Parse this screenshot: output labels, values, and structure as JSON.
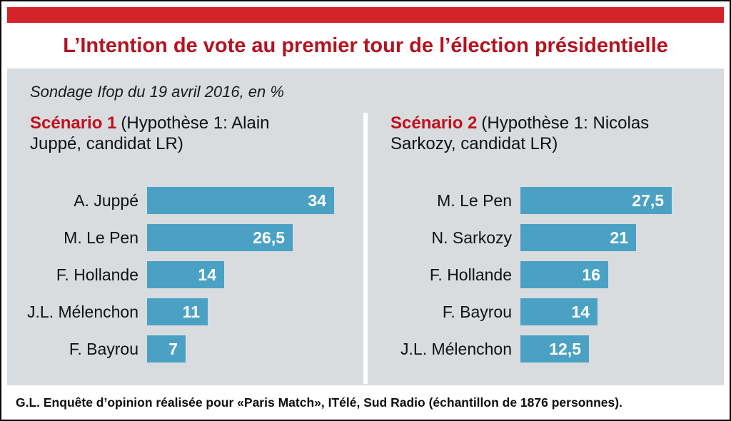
{
  "header": {
    "title": "L’Intention de vote au premier tour de l’élection présidentielle"
  },
  "subtitle": "Sondage Ifop du 19 avril 2016, en %",
  "chart_data": [
    {
      "type": "bar",
      "orientation": "horizontal",
      "title": "Scénario 1",
      "subtitle": "(Hypothèse 1: Alain Juppé, candidat LR)",
      "categories": [
        "A. Juppé",
        "M. Le Pen",
        "F. Hollande",
        "J.L. Mélenchon",
        "F. Bayrou"
      ],
      "values": [
        34,
        26.5,
        14,
        11,
        7
      ],
      "value_labels": [
        "34",
        "26,5",
        "14",
        "11",
        "7"
      ],
      "bar_color": "#4ba1c4",
      "xlim": [
        0,
        35
      ],
      "grid": false,
      "axis_visible": false,
      "data_labels": "inside-end, white bold"
    },
    {
      "type": "bar",
      "orientation": "horizontal",
      "title": "Scénario 2",
      "subtitle": "(Hypothèse 1: Nicolas Sarkozy, candidat LR)",
      "categories": [
        "M. Le Pen",
        "N. Sarkozy",
        "F. Hollande",
        "F. Bayrou",
        "J.L. Mélenchon"
      ],
      "values": [
        27.5,
        21,
        16,
        14,
        12.5
      ],
      "value_labels": [
        "27,5",
        "21",
        "16",
        "14",
        "12,5"
      ],
      "bar_color": "#4ba1c4",
      "xlim": [
        0,
        35
      ],
      "grid": false,
      "axis_visible": false,
      "data_labels": "inside-end, white bold"
    }
  ],
  "footer": "G.L. Enquête d’opinion réalisée pour «Paris Match», ITélé, Sud Radio (échantillon de 1876 personnes).",
  "colors": {
    "top_strip_red": "#d5232b",
    "title_red": "#b5121f",
    "scenario_red": "#c0101d",
    "bar_blue": "#4ba1c4",
    "panel_gray": "#d9dcde"
  }
}
